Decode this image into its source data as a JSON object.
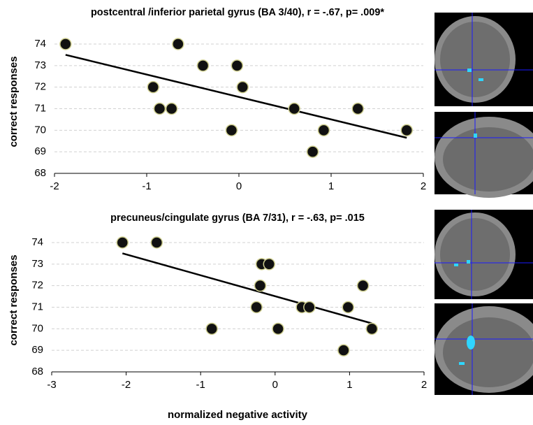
{
  "chart_data": [
    {
      "type": "scatter",
      "title": "postcentral /inferior parietal gyrus (BA 3/40), r = -.67, p= .009*",
      "ylabel": "correct responses",
      "x": [
        -1.88,
        -0.66,
        -0.93,
        -0.86,
        -0.73,
        -0.39,
        -0.02,
        0.04,
        -0.08,
        0.6,
        0.92,
        0.8,
        1.29,
        1.82
      ],
      "y": [
        74,
        74,
        72,
        71,
        71,
        73,
        73,
        72,
        70,
        71,
        70,
        69,
        71,
        70
      ],
      "fit": {
        "x": [
          -1.88,
          1.82
        ],
        "y": [
          73.5,
          69.65
        ]
      },
      "xlim": [
        -2,
        2
      ],
      "ylim": [
        68,
        74
      ],
      "xticks": [
        -2,
        -1,
        0,
        1,
        2
      ],
      "yticks": [
        68,
        69,
        70,
        71,
        72,
        73,
        74
      ],
      "grid": true,
      "color": "#111111"
    },
    {
      "type": "scatter",
      "title": "precuneus/cingulate gyrus (BA 7/31), r = -.63, p= .015",
      "ylabel": "correct responses",
      "xlabel": "normalized negative activity",
      "x": [
        -2.05,
        -1.59,
        -0.85,
        -0.18,
        -0.08,
        -0.2,
        -0.25,
        0.04,
        0.36,
        0.46,
        1.18,
        0.98,
        1.3,
        0.92
      ],
      "y": [
        74,
        74,
        70,
        73,
        73,
        72,
        71,
        70,
        71,
        71,
        72,
        71,
        70,
        69
      ],
      "fit": {
        "x": [
          -2.05,
          1.3
        ],
        "y": [
          73.5,
          70.25
        ]
      },
      "xlim": [
        -3,
        2
      ],
      "ylim": [
        68,
        74
      ],
      "xticks": [
        -3,
        -2,
        -1,
        0,
        1,
        2
      ],
      "yticks": [
        68,
        69,
        70,
        71,
        72,
        73,
        74
      ],
      "grid": true,
      "color": "#111111"
    }
  ]
}
